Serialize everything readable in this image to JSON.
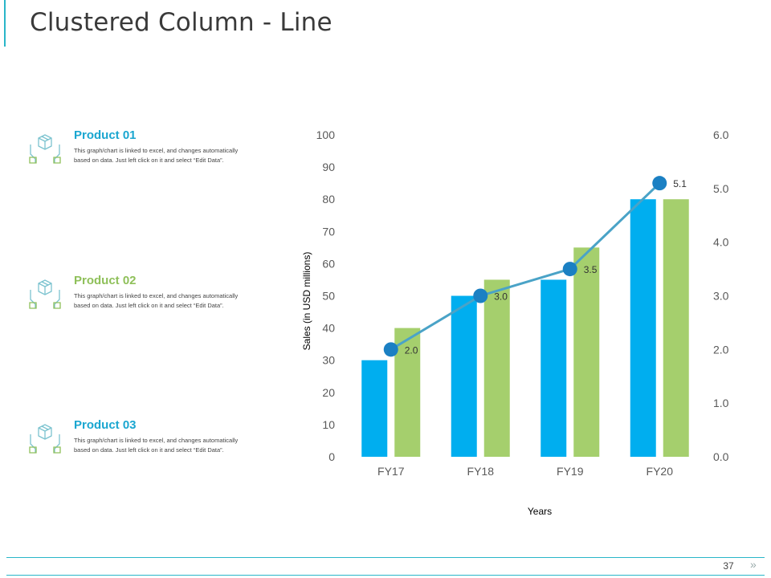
{
  "page": {
    "title": "Clustered Column - Line",
    "page_number": "37",
    "colors": {
      "accent": "#29b6c9",
      "bar_primary": "#00aeef",
      "bar_secondary": "#a5cf6d",
      "line": "#4aa3c7",
      "marker": "#1b80c3"
    }
  },
  "products": [
    {
      "name": "Product 01",
      "color": "#1aa6d0",
      "description": "This graph/chart is linked to excel, and changes automatically based on data. Just left click on it and select “Edit Data”."
    },
    {
      "name": "Product 02",
      "color": "#8fc05a",
      "description": "This graph/chart is linked to excel, and changes automatically based on data. Just left click on it and select “Edit Data”."
    },
    {
      "name": "Product 03",
      "color": "#1aa6d0",
      "description": "This graph/chart is linked to excel, and changes automatically based on data. Just left click on it and select “Edit Data”."
    }
  ],
  "chart_data": {
    "type": "bar",
    "title": "",
    "categories": [
      "FY17",
      "FY18",
      "FY19",
      "FY20"
    ],
    "series": [
      {
        "name": "Product 01",
        "kind": "bar",
        "axis": "left",
        "values": [
          30,
          50,
          55,
          80
        ]
      },
      {
        "name": "Product 02",
        "kind": "bar",
        "axis": "left",
        "values": [
          40,
          55,
          65,
          80
        ]
      },
      {
        "name": "Product 03",
        "kind": "line",
        "axis": "right",
        "values": [
          2.0,
          3.0,
          3.5,
          5.1
        ],
        "labels": [
          "2.0",
          "3.0",
          "3.5",
          "5.1"
        ]
      }
    ],
    "xlabel": "Years",
    "ylabel": "Sales (in USD  millions)",
    "ylim": [
      0,
      100
    ],
    "y_ticks": [
      "0",
      "10",
      "20",
      "30",
      "40",
      "50",
      "60",
      "70",
      "80",
      "90",
      "100"
    ],
    "y2lim": [
      0,
      6
    ],
    "y2_ticks": [
      "0.0",
      "1.0",
      "2.0",
      "3.0",
      "4.0",
      "5.0",
      "6.0"
    ],
    "grid": false,
    "legend": "none"
  }
}
